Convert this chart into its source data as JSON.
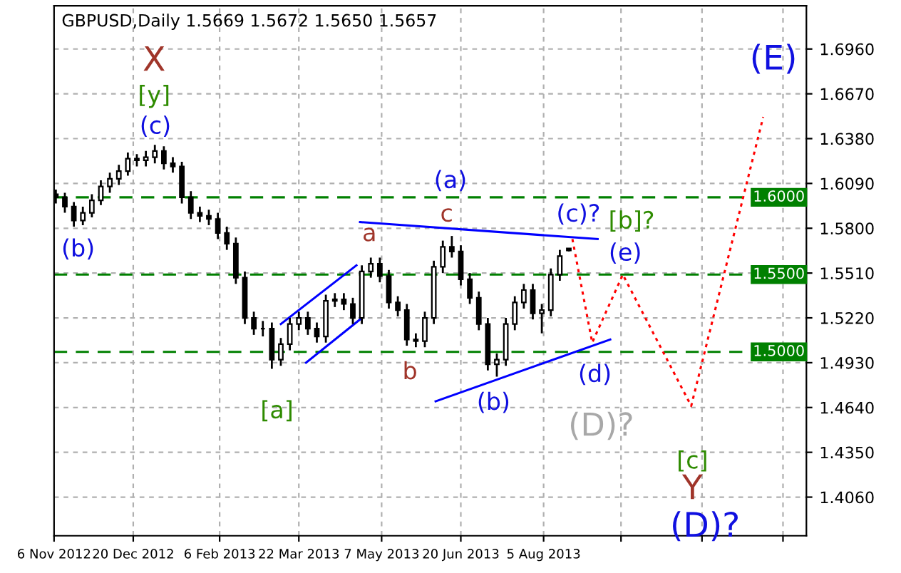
{
  "chart_data": {
    "type": "candlestick",
    "title": "GBPUSD,Daily 1.5669 1.5672 1.5650 1.5657",
    "x": [
      "2012-11-07",
      "2012-11-12",
      "2012-11-17",
      "2012-11-22",
      "2012-11-27",
      "2012-12-02",
      "2012-12-07",
      "2012-12-12",
      "2012-12-17",
      "2012-12-22",
      "2012-12-27",
      "2013-01-01",
      "2013-01-06",
      "2013-01-11",
      "2013-01-16",
      "2013-01-21",
      "2013-01-26",
      "2013-01-31",
      "2013-02-05",
      "2013-02-10",
      "2013-02-15",
      "2013-02-20",
      "2013-02-25",
      "2013-03-02",
      "2013-03-07",
      "2013-03-12",
      "2013-03-17",
      "2013-03-22",
      "2013-03-27",
      "2013-04-01",
      "2013-04-06",
      "2013-04-11",
      "2013-04-16",
      "2013-04-21",
      "2013-04-26",
      "2013-05-01",
      "2013-05-06",
      "2013-05-11",
      "2013-05-16",
      "2013-05-21",
      "2013-05-26",
      "2013-05-31",
      "2013-06-05",
      "2013-06-10",
      "2013-06-15",
      "2013-06-20",
      "2013-06-25",
      "2013-06-30",
      "2013-07-05",
      "2013-07-10",
      "2013-07-15",
      "2013-07-20",
      "2013-07-25",
      "2013-07-30",
      "2013-08-04",
      "2013-08-09",
      "2013-08-14",
      "2013-08-19"
    ],
    "ohlc": [
      [
        1.602,
        1.605,
        1.596,
        1.6
      ],
      [
        1.6,
        1.603,
        1.59,
        1.594
      ],
      [
        1.594,
        1.597,
        1.581,
        1.585
      ],
      [
        1.585,
        1.594,
        1.582,
        1.59
      ],
      [
        1.59,
        1.602,
        1.587,
        1.598
      ],
      [
        1.598,
        1.611,
        1.595,
        1.607
      ],
      [
        1.607,
        1.616,
        1.603,
        1.612
      ],
      [
        1.612,
        1.621,
        1.608,
        1.617
      ],
      [
        1.617,
        1.629,
        1.614,
        1.625
      ],
      [
        1.625,
        1.628,
        1.62,
        1.624
      ],
      [
        1.624,
        1.63,
        1.62,
        1.626
      ],
      [
        1.626,
        1.634,
        1.622,
        1.63
      ],
      [
        1.63,
        1.633,
        1.618,
        1.622
      ],
      [
        1.622,
        1.626,
        1.616,
        1.62
      ],
      [
        1.62,
        1.623,
        1.596,
        1.6
      ],
      [
        1.6,
        1.604,
        1.586,
        1.59
      ],
      [
        1.59,
        1.594,
        1.584,
        1.588
      ],
      [
        1.588,
        1.592,
        1.582,
        1.586
      ],
      [
        1.586,
        1.59,
        1.573,
        1.577
      ],
      [
        1.577,
        1.581,
        1.566,
        1.57
      ],
      [
        1.57,
        1.574,
        1.544,
        1.548
      ],
      [
        1.548,
        1.552,
        1.518,
        1.522
      ],
      [
        1.522,
        1.526,
        1.511,
        1.515
      ],
      [
        1.515,
        1.52,
        1.51,
        1.515
      ],
      [
        1.515,
        1.519,
        1.489,
        1.495
      ],
      [
        1.495,
        1.509,
        1.491,
        1.505
      ],
      [
        1.505,
        1.522,
        1.501,
        1.518
      ],
      [
        1.518,
        1.526,
        1.514,
        1.522
      ],
      [
        1.522,
        1.526,
        1.511,
        1.515
      ],
      [
        1.515,
        1.519,
        1.506,
        1.51
      ],
      [
        1.51,
        1.537,
        1.506,
        1.533
      ],
      [
        1.533,
        1.538,
        1.529,
        1.534
      ],
      [
        1.534,
        1.538,
        1.527,
        1.531
      ],
      [
        1.531,
        1.535,
        1.518,
        1.522
      ],
      [
        1.522,
        1.556,
        1.518,
        1.552
      ],
      [
        1.552,
        1.561,
        1.548,
        1.557
      ],
      [
        1.557,
        1.561,
        1.545,
        1.549
      ],
      [
        1.549,
        1.553,
        1.528,
        1.532
      ],
      [
        1.532,
        1.536,
        1.523,
        1.527
      ],
      [
        1.527,
        1.531,
        1.504,
        1.508
      ],
      [
        1.508,
        1.512,
        1.503,
        1.507
      ],
      [
        1.507,
        1.526,
        1.503,
        1.522
      ],
      [
        1.522,
        1.559,
        1.518,
        1.555
      ],
      [
        1.555,
        1.572,
        1.551,
        1.568
      ],
      [
        1.568,
        1.575,
        1.561,
        1.565
      ],
      [
        1.565,
        1.569,
        1.543,
        1.547
      ],
      [
        1.547,
        1.551,
        1.531,
        1.535
      ],
      [
        1.535,
        1.539,
        1.514,
        1.518
      ],
      [
        1.518,
        1.522,
        1.488,
        1.492
      ],
      [
        1.492,
        1.499,
        1.484,
        1.495
      ],
      [
        1.495,
        1.522,
        1.491,
        1.518
      ],
      [
        1.518,
        1.536,
        1.514,
        1.532
      ],
      [
        1.532,
        1.544,
        1.528,
        1.54
      ],
      [
        1.54,
        1.544,
        1.521,
        1.525
      ],
      [
        1.525,
        1.531,
        1.512,
        1.527
      ],
      [
        1.527,
        1.554,
        1.523,
        1.55
      ],
      [
        1.55,
        1.566,
        1.546,
        1.562
      ],
      [
        1.5669,
        1.5672,
        1.565,
        1.5657
      ]
    ],
    "color": "#000000",
    "series": [
      {
        "type": "line",
        "color": "#0000ff",
        "line_style": "solid",
        "x": [
          "2013-03-12",
          "2013-04-23"
        ],
        "values": [
          1.518,
          1.556
        ]
      },
      {
        "type": "line",
        "color": "#0000ff",
        "line_style": "solid",
        "x": [
          "2013-03-26",
          "2013-04-25"
        ],
        "values": [
          1.493,
          1.521
        ]
      },
      {
        "type": "line",
        "color": "#0000ff",
        "line_style": "solid",
        "x": [
          "2013-04-25",
          "2013-09-04"
        ],
        "values": [
          1.584,
          1.573
        ]
      },
      {
        "type": "line",
        "color": "#0000ff",
        "line_style": "solid",
        "x": [
          "2013-06-06",
          "2013-09-11"
        ],
        "values": [
          1.468,
          1.508
        ]
      },
      {
        "type": "line",
        "color": "#ff0000",
        "line_style": "dotted",
        "x": [
          "2013-08-21",
          "2013-09-01",
          "2013-09-18",
          "2013-10-26",
          "2013-12-05"
        ],
        "values": [
          1.573,
          1.506,
          1.55,
          1.465,
          1.652
        ]
      }
    ],
    "ref_lines": [
      {
        "axis": "y",
        "value": 1.6,
        "label": "1.6000",
        "color": "#008000",
        "line_style": "dashed"
      },
      {
        "axis": "y",
        "value": 1.55,
        "label": "1.5500",
        "color": "#008000",
        "line_style": "dashed"
      },
      {
        "axis": "y",
        "value": 1.5,
        "label": "1.5000",
        "color": "#008000",
        "line_style": "dashed"
      }
    ],
    "annotations": [
      "X",
      "[y]",
      "(c)",
      "(b)",
      "[a]",
      "a",
      "b",
      "(a)",
      "c",
      "(b)",
      "(c)?",
      "[b]?",
      "(e)",
      "(d)",
      "(D)?",
      "[c]",
      "Y",
      "(D)?",
      "(E)"
    ],
    "xlim": [
      "2012-11-06",
      "2013-12-29"
    ],
    "xticks": [
      {
        "value": "2012-11-06",
        "label": "6 Nov 2012"
      },
      {
        "value": "2012-12-20",
        "label": "20 Dec 2012"
      },
      {
        "value": "2013-02-06",
        "label": "6 Feb 2013"
      },
      {
        "value": "2013-03-22",
        "label": "22 Mar 2013"
      },
      {
        "value": "2013-05-07",
        "label": "7 May 2013"
      },
      {
        "value": "2013-06-20",
        "label": "20 Jun 2013"
      },
      {
        "value": "2013-08-05",
        "label": "5 Aug 2013"
      },
      {
        "value": "2013-09-17",
        "label": null
      },
      {
        "value": "2013-11-01",
        "label": null
      },
      {
        "value": "2013-12-16",
        "label": null
      }
    ],
    "ylim": [
      1.381,
      1.724
    ],
    "yticks": [
      {
        "value": 1.406,
        "label": "1.4060"
      },
      {
        "value": 1.435,
        "label": "1.4350"
      },
      {
        "value": 1.464,
        "label": "1.4640"
      },
      {
        "value": 1.493,
        "label": "1.4930"
      },
      {
        "value": 1.522,
        "label": "1.5220"
      },
      {
        "value": 1.551,
        "label": "1.5510"
      },
      {
        "value": 1.58,
        "label": "1.5800"
      },
      {
        "value": 1.609,
        "label": "1.6090"
      },
      {
        "value": 1.638,
        "label": "1.6380"
      },
      {
        "value": 1.667,
        "label": "1.6670"
      },
      {
        "value": 1.696,
        "label": "1.6960"
      }
    ],
    "grid": true
  }
}
